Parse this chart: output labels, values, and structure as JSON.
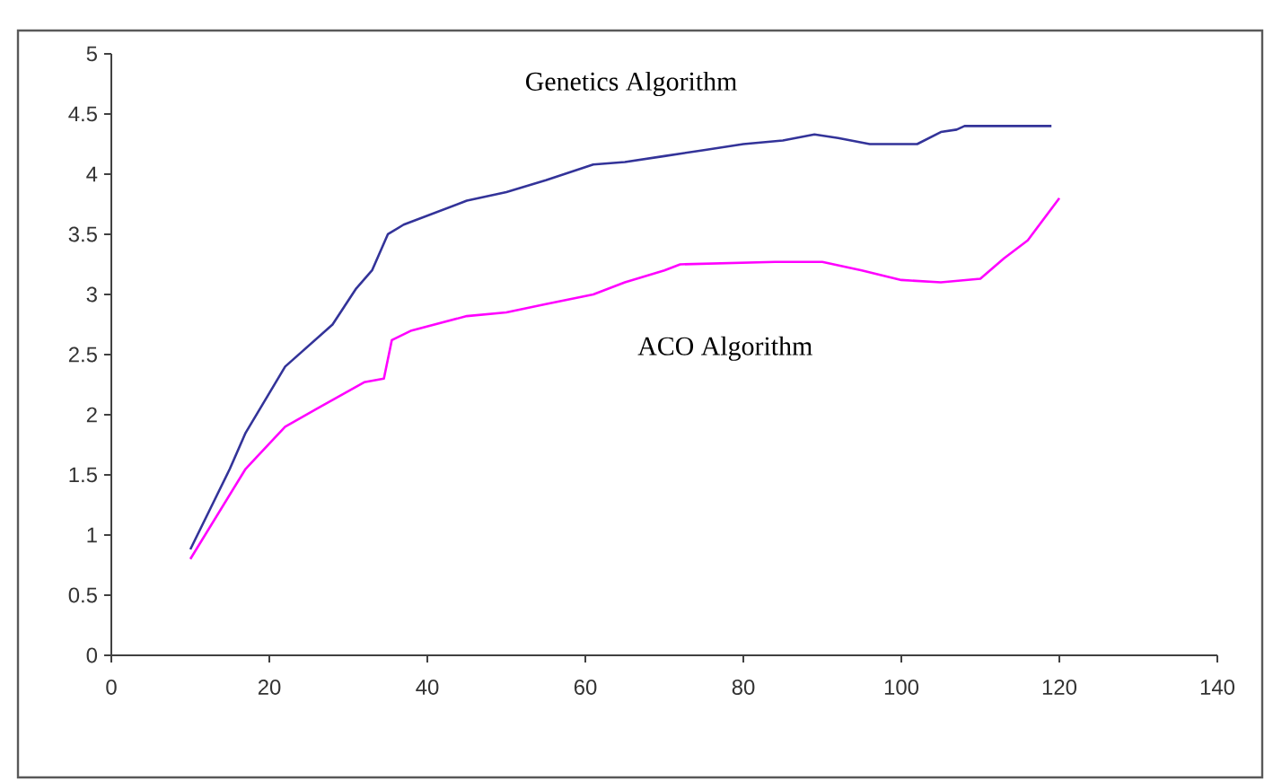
{
  "chart_data": {
    "type": "line",
    "xlim": [
      0,
      140
    ],
    "ylim": [
      0,
      5
    ],
    "xticks": [
      0,
      20,
      40,
      60,
      80,
      100,
      120,
      140
    ],
    "yticks": [
      0,
      0.5,
      1,
      1.5,
      2,
      2.5,
      3,
      3.5,
      4,
      4.5,
      5
    ],
    "grid": false,
    "legend": false,
    "marker": "none",
    "line_style": "solid",
    "series": [
      {
        "name": "Genetics Algorithm",
        "color": "#333399",
        "x": [
          10,
          15,
          17,
          22,
          28,
          31,
          33,
          35,
          37,
          45,
          50,
          55,
          61,
          65,
          70,
          75,
          80,
          85,
          89,
          92,
          96,
          102,
          105,
          107,
          108,
          119
        ],
        "values": [
          0.88,
          1.55,
          1.85,
          2.4,
          2.75,
          3.05,
          3.2,
          3.5,
          3.58,
          3.78,
          3.85,
          3.95,
          4.08,
          4.1,
          4.15,
          4.2,
          4.25,
          4.28,
          4.33,
          4.3,
          4.25,
          4.25,
          4.35,
          4.37,
          4.4,
          4.4
        ]
      },
      {
        "name": "ACO Algorithm",
        "color": "#ff00ff",
        "x": [
          10,
          17,
          22,
          26,
          32,
          34.5,
          35.5,
          38,
          45,
          50,
          55,
          61,
          65,
          70,
          72,
          84,
          90,
          95,
          100,
          105,
          110,
          113,
          116,
          120
        ],
        "values": [
          0.8,
          1.55,
          1.9,
          2.05,
          2.27,
          2.3,
          2.62,
          2.7,
          2.82,
          2.85,
          2.92,
          3.0,
          3.1,
          3.2,
          3.25,
          3.27,
          3.27,
          3.2,
          3.12,
          3.1,
          3.13,
          3.3,
          3.45,
          3.8
        ]
      }
    ]
  }
}
